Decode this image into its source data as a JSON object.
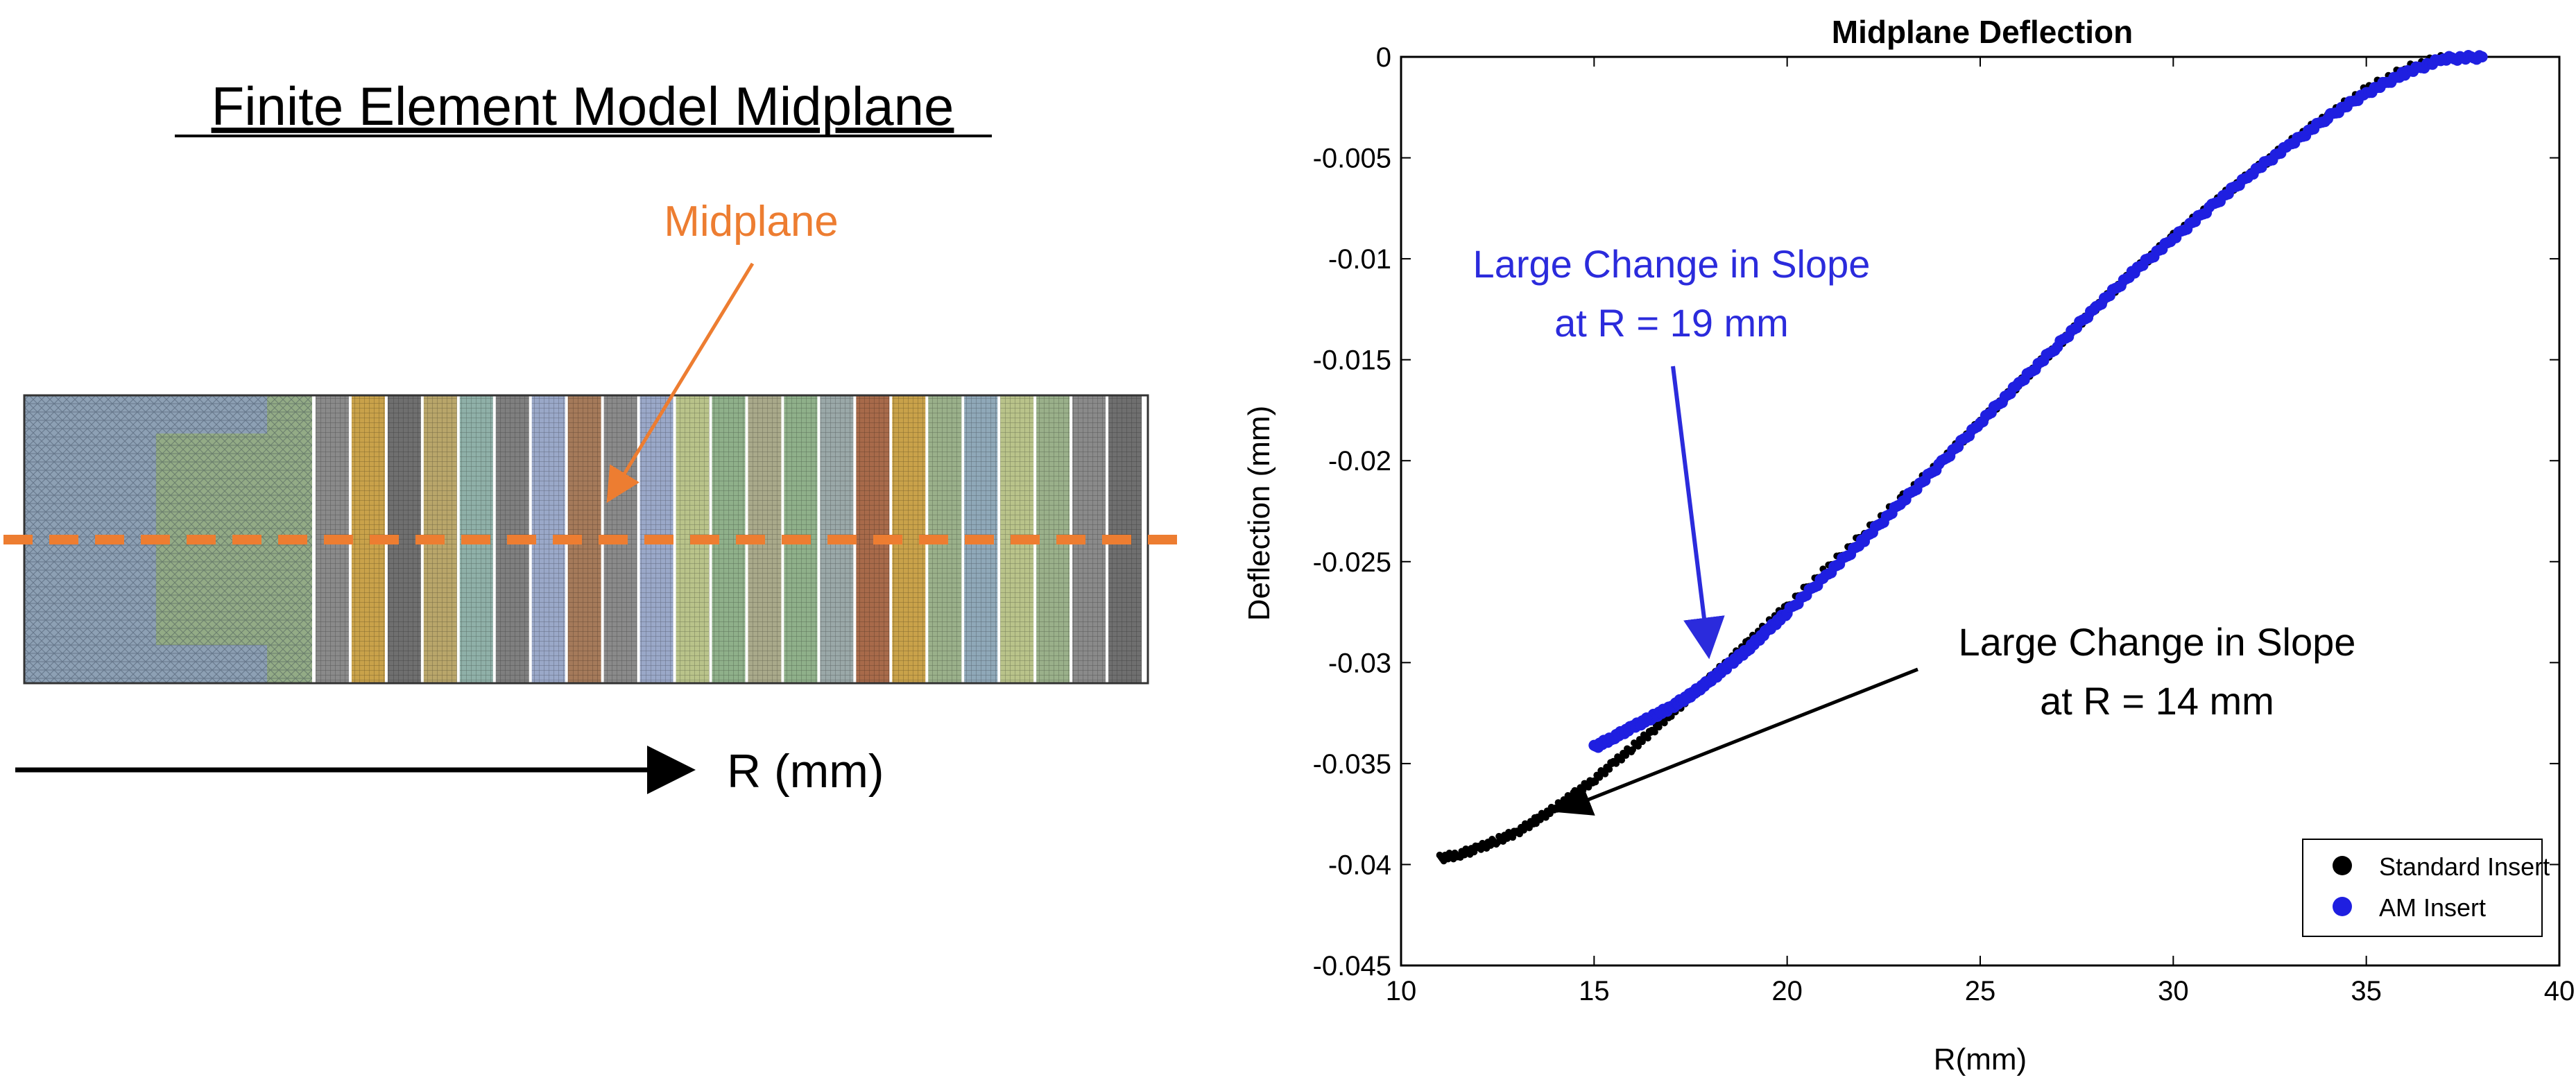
{
  "left_panel": {
    "title": "Finite Element Model Midplane",
    "midplane_label": "Midplane",
    "axis_label": "R (mm)",
    "midplane_color": "#ED7D31",
    "strips": [
      "#8a8a8a",
      "#c9a24a",
      "#6f6f6f",
      "#b9a66a",
      "#8fb0a8",
      "#7f7f7f",
      "#9aa8c8",
      "#a57a5a",
      "#8a8a8a",
      "#9aa8c8",
      "#b9c38a",
      "#8fb08a",
      "#a9a98a",
      "#8fb08a",
      "#9aa8a8",
      "#a86a4a",
      "#c9a24a",
      "#9ab08a",
      "#8fa8b8",
      "#b9c38a",
      "#9ab08a",
      "#8a8a8a",
      "#6f6f6f"
    ]
  },
  "chart_data": {
    "type": "scatter",
    "title": "Midplane Deflection",
    "xlabel": "R(mm)",
    "ylabel": "Deflection (mm)",
    "xlim": [
      10,
      40
    ],
    "ylim": [
      -0.045,
      0
    ],
    "xticks": [
      10,
      15,
      20,
      25,
      30,
      35,
      40
    ],
    "yticks": [
      0,
      -0.005,
      -0.01,
      -0.015,
      -0.02,
      -0.025,
      -0.03,
      -0.035,
      -0.04,
      -0.045
    ],
    "xtick_labels": [
      "10",
      "15",
      "20",
      "25",
      "30",
      "35",
      "40"
    ],
    "ytick_labels": [
      "0",
      "-0.005",
      "-0.01",
      "-0.015",
      "-0.02",
      "-0.025",
      "-0.03",
      "-0.035",
      "-0.04",
      "-0.045"
    ],
    "series": [
      {
        "name": "Standard Insert",
        "color": "#000000",
        "x": [
          11.0,
          11.5,
          12.0,
          12.5,
          13.0,
          13.5,
          14.0,
          14.5,
          15.0,
          15.5,
          16.0,
          16.5,
          17.0,
          17.5,
          18.0,
          18.5,
          19.0,
          19.5,
          20.0,
          21.0,
          22.0,
          23.0,
          24.0,
          25.0,
          26.0,
          27.0,
          28.0,
          29.0,
          30.0,
          31.0,
          32.0,
          33.0,
          34.0,
          35.0,
          36.0,
          37.0
        ],
        "values": [
          -0.0397,
          -0.0395,
          -0.0392,
          -0.0388,
          -0.0384,
          -0.0378,
          -0.0372,
          -0.0365,
          -0.0358,
          -0.035,
          -0.0342,
          -0.0334,
          -0.0325,
          -0.0317,
          -0.0308,
          -0.0299,
          -0.029,
          -0.0281,
          -0.0272,
          -0.0254,
          -0.0236,
          -0.0218,
          -0.02,
          -0.0181,
          -0.0162,
          -0.0143,
          -0.0124,
          -0.0106,
          -0.0089,
          -0.0073,
          -0.0058,
          -0.0043,
          -0.0029,
          -0.0016,
          -0.0006,
          0.0
        ]
      },
      {
        "name": "AM Insert",
        "color": "#1f1fe0",
        "x": [
          15.0,
          15.5,
          16.0,
          16.5,
          17.0,
          17.5,
          18.0,
          18.5,
          19.0,
          19.5,
          20.0,
          21.0,
          22.0,
          23.0,
          24.0,
          25.0,
          26.0,
          27.0,
          28.0,
          29.0,
          30.0,
          31.0,
          32.0,
          33.0,
          34.0,
          35.0,
          36.0,
          37.0,
          38.0
        ],
        "values": [
          -0.0342,
          -0.0337,
          -0.0332,
          -0.0327,
          -0.0322,
          -0.0316,
          -0.0309,
          -0.0301,
          -0.0293,
          -0.0284,
          -0.0275,
          -0.0257,
          -0.0239,
          -0.022,
          -0.0201,
          -0.0181,
          -0.0162,
          -0.0143,
          -0.0124,
          -0.0106,
          -0.009,
          -0.0074,
          -0.0058,
          -0.0044,
          -0.003,
          -0.0018,
          -0.0008,
          -0.0001,
          0.0
        ]
      }
    ],
    "legend": [
      {
        "label": "Standard Insert",
        "color": "#000000"
      },
      {
        "label": "AM Insert",
        "color": "#1f1fe0"
      }
    ],
    "annotations": [
      {
        "line1": "Large Change in Slope",
        "line2": "at R = 19 mm",
        "color": "#2b2bdc",
        "target_x": 18,
        "target_y": -0.0297
      },
      {
        "line1": "Large Change in Slope",
        "line2": "at R = 14 mm",
        "color": "#000000",
        "target_x": 14.0,
        "target_y": -0.0375
      }
    ]
  }
}
